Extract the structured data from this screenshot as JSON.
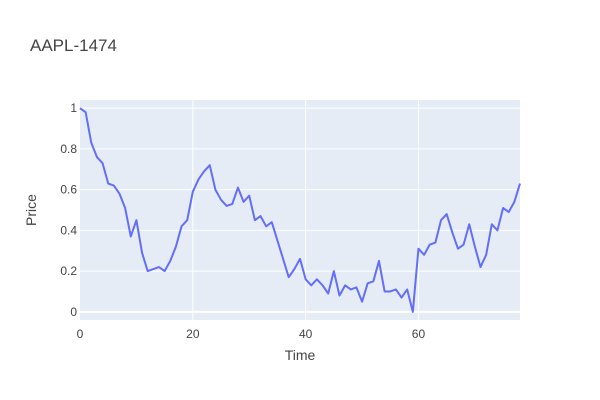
{
  "chart_data": {
    "type": "line",
    "title": "AAPL-1474",
    "xlabel": "Time",
    "ylabel": "Price",
    "xlim": [
      0,
      78
    ],
    "ylim": [
      -0.04,
      1.04
    ],
    "xticks": [
      0,
      20,
      40,
      60
    ],
    "yticks": [
      0,
      0.2,
      0.4,
      0.6,
      0.8,
      1
    ],
    "yticklabels": [
      "0",
      "0.2",
      "0.4",
      "0.6",
      "0.8",
      "1"
    ],
    "grid": true,
    "series": [
      {
        "x": [
          0,
          1,
          2,
          3,
          4,
          5,
          6,
          7,
          8,
          9,
          10,
          11,
          12,
          13,
          14,
          15,
          16,
          17,
          18,
          19,
          20,
          21,
          22,
          23,
          24,
          25,
          26,
          27,
          28,
          29,
          30,
          31,
          32,
          33,
          34,
          35,
          36,
          37,
          38,
          39,
          40,
          41,
          42,
          43,
          44,
          45,
          46,
          47,
          48,
          49,
          50,
          51,
          52,
          53,
          54,
          55,
          56,
          57,
          58,
          59,
          60,
          61,
          62,
          63,
          64,
          65,
          66,
          67,
          68,
          69,
          70,
          71,
          72,
          73,
          74,
          75,
          76,
          77,
          78
        ],
        "y": [
          1.0,
          0.98,
          0.83,
          0.76,
          0.73,
          0.63,
          0.62,
          0.58,
          0.51,
          0.37,
          0.45,
          0.29,
          0.2,
          0.21,
          0.22,
          0.2,
          0.25,
          0.32,
          0.42,
          0.45,
          0.59,
          0.65,
          0.69,
          0.72,
          0.6,
          0.55,
          0.52,
          0.53,
          0.61,
          0.54,
          0.57,
          0.45,
          0.47,
          0.42,
          0.44,
          0.35,
          0.26,
          0.17,
          0.21,
          0.26,
          0.16,
          0.13,
          0.16,
          0.13,
          0.09,
          0.2,
          0.08,
          0.13,
          0.11,
          0.12,
          0.05,
          0.14,
          0.15,
          0.25,
          0.1,
          0.1,
          0.11,
          0.07,
          0.11,
          0.0,
          0.31,
          0.28,
          0.33,
          0.34,
          0.45,
          0.48,
          0.39,
          0.31,
          0.33,
          0.43,
          0.32,
          0.22,
          0.28,
          0.43,
          0.4,
          0.51,
          0.49,
          0.54,
          0.63
        ]
      }
    ]
  },
  "colors": {
    "line": "#636efa",
    "plot_bg": "#e5ecf6",
    "grid": "#ffffff",
    "text": "#444444"
  }
}
